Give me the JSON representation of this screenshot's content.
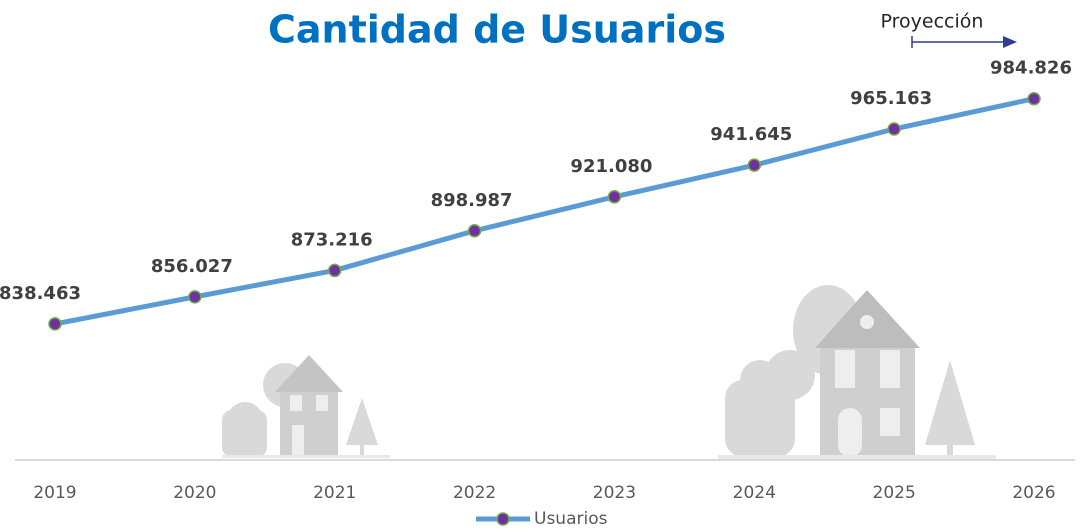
{
  "chart_data": {
    "type": "line",
    "title": "Cantidad de Usuarios",
    "annotation": "Proyección",
    "categories": [
      "2019",
      "2020",
      "2021",
      "2022",
      "2023",
      "2024",
      "2025",
      "2026"
    ],
    "series": [
      {
        "name": "Usuarios",
        "color": "#5b9bd5",
        "marker_color": "#7030a0",
        "marker_edge": "#70ad47",
        "values": [
          838463,
          856027,
          873216,
          898987,
          921080,
          941645,
          965163,
          984826
        ],
        "value_labels": [
          "838.463",
          "856.027",
          "873.216",
          "898.987",
          "921.080",
          "941.645",
          "965.163",
          "984.826"
        ]
      }
    ],
    "ylim": [
      750000,
      1010000
    ],
    "legend": "bottom"
  }
}
